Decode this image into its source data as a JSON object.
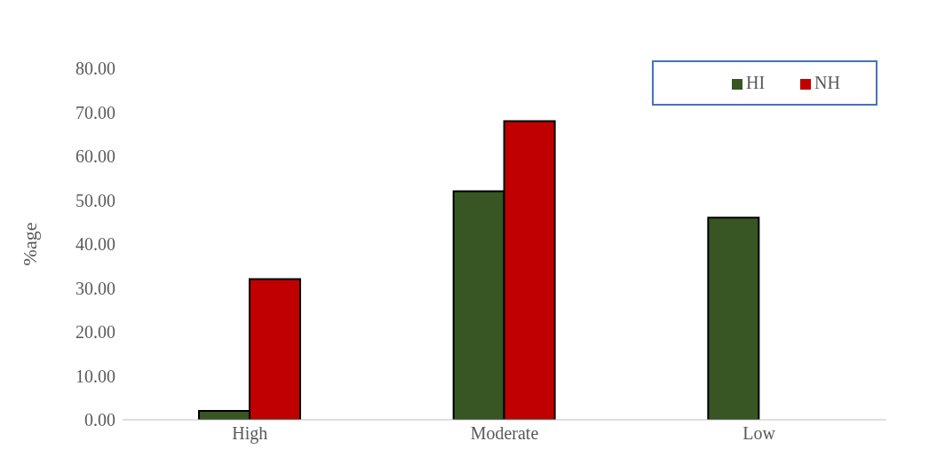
{
  "chart_data": {
    "type": "bar",
    "ylabel": "%age",
    "categories": [
      "High",
      "Moderate",
      "Low"
    ],
    "series": [
      {
        "name": "HI",
        "color": "#375623",
        "values": [
          2,
          52,
          46
        ]
      },
      {
        "name": "NH",
        "color": "#c00000",
        "values": [
          32,
          68,
          0
        ]
      }
    ],
    "ylim": [
      0,
      80
    ],
    "yticks": [
      {
        "value": 0,
        "label": "0.00"
      },
      {
        "value": 10,
        "label": "10.00"
      },
      {
        "value": 20,
        "label": "20.00"
      },
      {
        "value": 30,
        "label": "30.00"
      },
      {
        "value": 40,
        "label": "40.00"
      },
      {
        "value": 50,
        "label": "50.00"
      },
      {
        "value": 60,
        "label": "60.00"
      },
      {
        "value": 70,
        "label": "70.00"
      },
      {
        "value": 80,
        "label": "80.00"
      }
    ],
    "grid": false,
    "legend": "top right"
  }
}
